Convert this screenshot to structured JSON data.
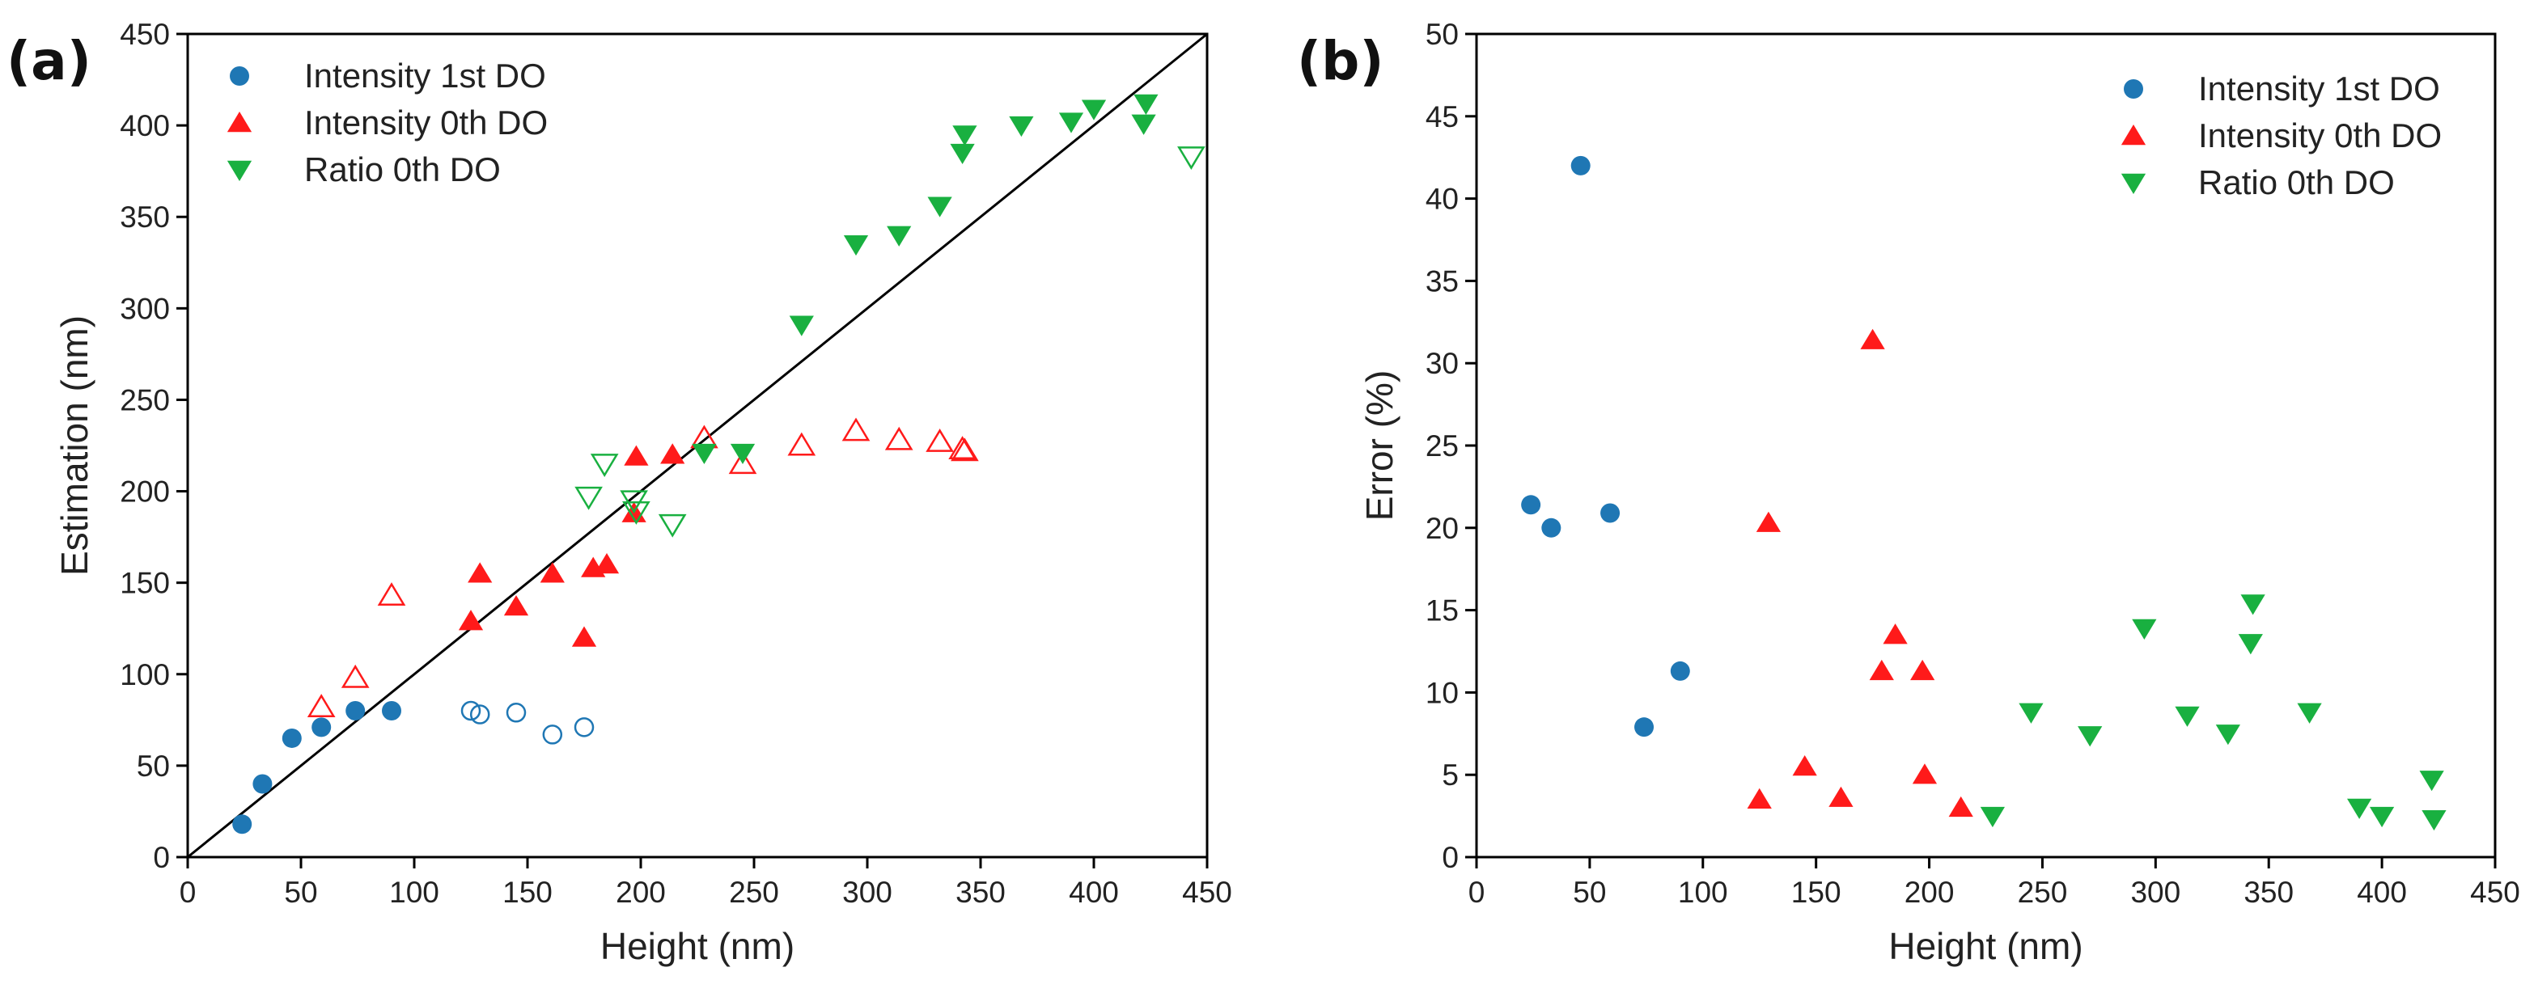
{
  "colors": {
    "intensity_1st": "#1f77b4",
    "intensity_0th": "#ff1a1a",
    "ratio_0th": "#19b040"
  },
  "chart_data": [
    {
      "type": "scatter",
      "panel_label": "(a)",
      "xlabel": "Height (nm)",
      "ylabel": "Estimation (nm)",
      "xlim": [
        0,
        450
      ],
      "ylim": [
        0,
        450
      ],
      "xticks": [
        0,
        50,
        100,
        150,
        200,
        250,
        300,
        350,
        400,
        450
      ],
      "yticks": [
        0,
        50,
        100,
        150,
        200,
        250,
        300,
        350,
        400,
        450
      ],
      "legend_position": "top-left",
      "reference_line": {
        "x": [
          0,
          450
        ],
        "y": [
          0,
          450
        ]
      },
      "series": [
        {
          "name": "Intensity 1st DO",
          "marker": "circle",
          "color_key": "intensity_1st",
          "filled": [
            [
              24,
              18
            ],
            [
              33,
              40
            ],
            [
              46,
              65
            ],
            [
              59,
              71
            ],
            [
              74,
              80
            ],
            [
              90,
              80
            ]
          ],
          "open": [
            [
              125,
              80
            ],
            [
              129,
              78
            ],
            [
              145,
              79
            ],
            [
              161,
              67
            ],
            [
              175,
              71
            ]
          ]
        },
        {
          "name": "Intensity 0th DO",
          "marker": "triangle-up",
          "color_key": "intensity_0th",
          "filled": [
            [
              125,
              129
            ],
            [
              129,
              155
            ],
            [
              145,
              137
            ],
            [
              161,
              155
            ],
            [
              175,
              120
            ],
            [
              179,
              158
            ],
            [
              185,
              160
            ],
            [
              197,
              188
            ],
            [
              198,
              219
            ],
            [
              214,
              220
            ]
          ],
          "open": [
            [
              59,
              82
            ],
            [
              74,
              98
            ],
            [
              90,
              143
            ],
            [
              228,
              229
            ],
            [
              245,
              215
            ],
            [
              271,
              225
            ],
            [
              295,
              233
            ],
            [
              314,
              228
            ],
            [
              332,
              227
            ],
            [
              342,
              223
            ],
            [
              343,
              222
            ]
          ]
        },
        {
          "name": "Ratio 0th DO",
          "marker": "triangle-down",
          "color_key": "ratio_0th",
          "filled": [
            [
              228,
              221
            ],
            [
              245,
              221
            ],
            [
              271,
              291
            ],
            [
              295,
              335
            ],
            [
              314,
              340
            ],
            [
              332,
              356
            ],
            [
              342,
              385
            ],
            [
              343,
              395
            ],
            [
              368,
              400
            ],
            [
              390,
              402
            ],
            [
              400,
              409
            ],
            [
              422,
              401
            ],
            [
              423,
              412
            ]
          ],
          "open": [
            [
              177,
              197
            ],
            [
              184,
              215
            ],
            [
              197,
              195
            ],
            [
              198,
              189
            ],
            [
              214,
              182
            ],
            [
              443,
              383
            ]
          ]
        }
      ]
    },
    {
      "type": "scatter",
      "panel_label": "(b)",
      "xlabel": "Height (nm)",
      "ylabel": "Error (%)",
      "xlim": [
        0,
        450
      ],
      "ylim": [
        0,
        50
      ],
      "xticks": [
        0,
        50,
        100,
        150,
        200,
        250,
        300,
        350,
        400,
        450
      ],
      "yticks": [
        0,
        5,
        10,
        15,
        20,
        25,
        30,
        35,
        40,
        45,
        50
      ],
      "legend_position": "top-right",
      "series": [
        {
          "name": "Intensity 1st DO",
          "marker": "circle",
          "color_key": "intensity_1st",
          "filled": [
            [
              24,
              21.4
            ],
            [
              33,
              20
            ],
            [
              46,
              42
            ],
            [
              59,
              20.9
            ],
            [
              74,
              7.9
            ],
            [
              90,
              11.3
            ]
          ],
          "open": []
        },
        {
          "name": "Intensity 0th DO",
          "marker": "triangle-up",
          "color_key": "intensity_0th",
          "filled": [
            [
              125,
              3.5
            ],
            [
              129,
              20.3
            ],
            [
              145,
              5.5
            ],
            [
              161,
              3.6
            ],
            [
              175,
              31.4
            ],
            [
              179,
              11.3
            ],
            [
              185,
              13.5
            ],
            [
              197,
              11.3
            ],
            [
              198,
              5
            ],
            [
              214,
              3
            ]
          ],
          "open": []
        },
        {
          "name": "Ratio 0th DO",
          "marker": "triangle-down",
          "color_key": "ratio_0th",
          "filled": [
            [
              228,
              2.5
            ],
            [
              245,
              8.8
            ],
            [
              271,
              7.4
            ],
            [
              295,
              13.9
            ],
            [
              314,
              8.6
            ],
            [
              332,
              7.5
            ],
            [
              342,
              13
            ],
            [
              343,
              15.4
            ],
            [
              368,
              8.8
            ],
            [
              390,
              3
            ],
            [
              400,
              2.5
            ],
            [
              422,
              4.7
            ],
            [
              423,
              2.3
            ]
          ],
          "open": []
        }
      ]
    }
  ]
}
